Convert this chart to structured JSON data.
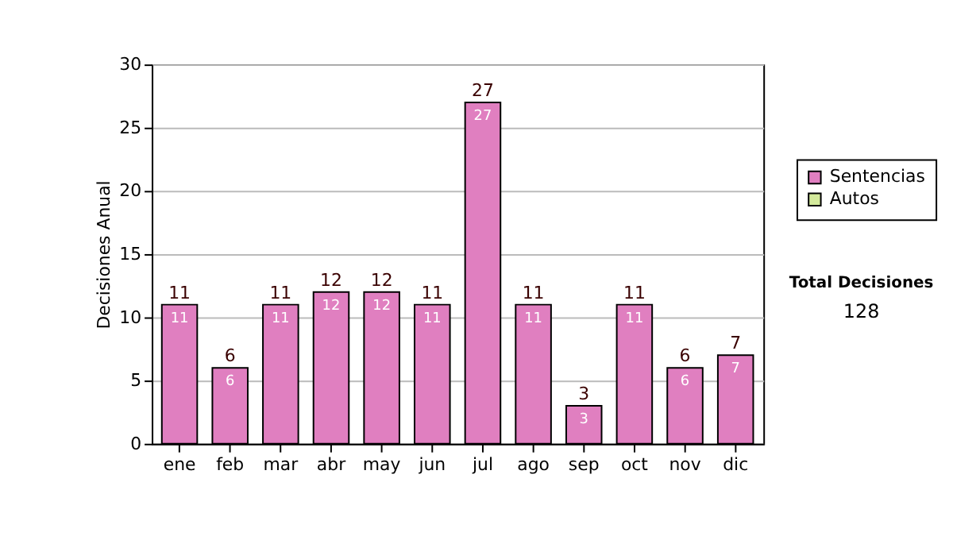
{
  "chart_data": {
    "type": "bar",
    "stacked": true,
    "ylabel": "Decisiones Anual",
    "categories": [
      "ene",
      "feb",
      "mar",
      "abr",
      "may",
      "jun",
      "jul",
      "ago",
      "sep",
      "oct",
      "nov",
      "dic"
    ],
    "series": [
      {
        "name": "Sentencias",
        "color": "#e07fc0",
        "values": [
          11,
          6,
          11,
          12,
          12,
          11,
          27,
          11,
          3,
          11,
          6,
          7
        ],
        "value_labels": [
          "11",
          "6",
          "11",
          "12",
          "12",
          "11",
          "27",
          "11",
          "3",
          "11",
          "6",
          "7"
        ]
      },
      {
        "name": "Autos",
        "color": "#d4ea9c",
        "values": [
          0,
          0,
          0,
          0,
          0,
          0,
          0,
          0,
          0,
          0,
          0,
          0
        ]
      }
    ],
    "totals": [
      "11",
      "6",
      "11",
      "12",
      "12",
      "11",
      "27",
      "11",
      "3",
      "11",
      "6",
      "7"
    ],
    "ylim": [
      0,
      30
    ],
    "yticks": [
      0,
      5,
      10,
      15,
      20,
      25,
      30
    ],
    "grid": "y",
    "legend": "right",
    "annotations": [
      "Total Decisiones",
      "128"
    ]
  }
}
